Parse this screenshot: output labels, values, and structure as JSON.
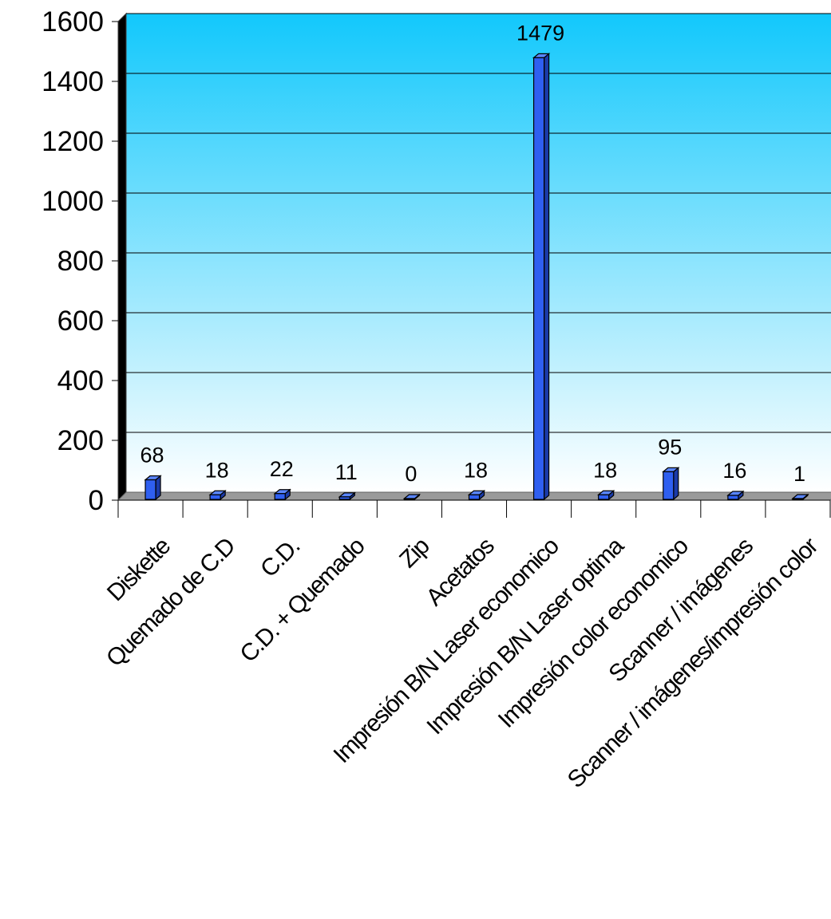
{
  "chart_data": {
    "type": "bar",
    "title": "",
    "xlabel": "",
    "ylabel": "",
    "ylim": [
      0,
      1600
    ],
    "y_ticks": [
      "0",
      "200",
      "400",
      "600",
      "800",
      "1000",
      "1200",
      "1400",
      "1600"
    ],
    "y_tick_values": [
      0,
      200,
      400,
      600,
      800,
      1000,
      1200,
      1400,
      1600
    ],
    "grid": true,
    "legend": "none",
    "style": "3d-bar",
    "categories": [
      "Diskette",
      "Quemado de C.D",
      "C.D.",
      "C.D. + Quemado",
      "Zip",
      "Acetatos",
      "Impresión B/N Laser economico",
      "Impresión B/N Laser optima",
      "Impresión color economico",
      "Scanner / imágenes",
      "Scanner / imágenes/impresión color"
    ],
    "values": [
      68,
      18,
      22,
      11,
      0,
      18,
      1479,
      18,
      95,
      16,
      1
    ],
    "data_labels": [
      "68",
      "18",
      "22",
      "11",
      "0",
      "18",
      "1479",
      "18",
      "95",
      "16",
      "1"
    ],
    "colors": {
      "bar_front": "#2f5ff0",
      "bar_side": "#1a3aa8",
      "bar_top": "#5a86ff",
      "plot_top": "#12c8fc",
      "plot_bottom": "#ffffff",
      "wall": "#000000",
      "floor": "#9a9a9a",
      "grid": "#000000"
    }
  }
}
